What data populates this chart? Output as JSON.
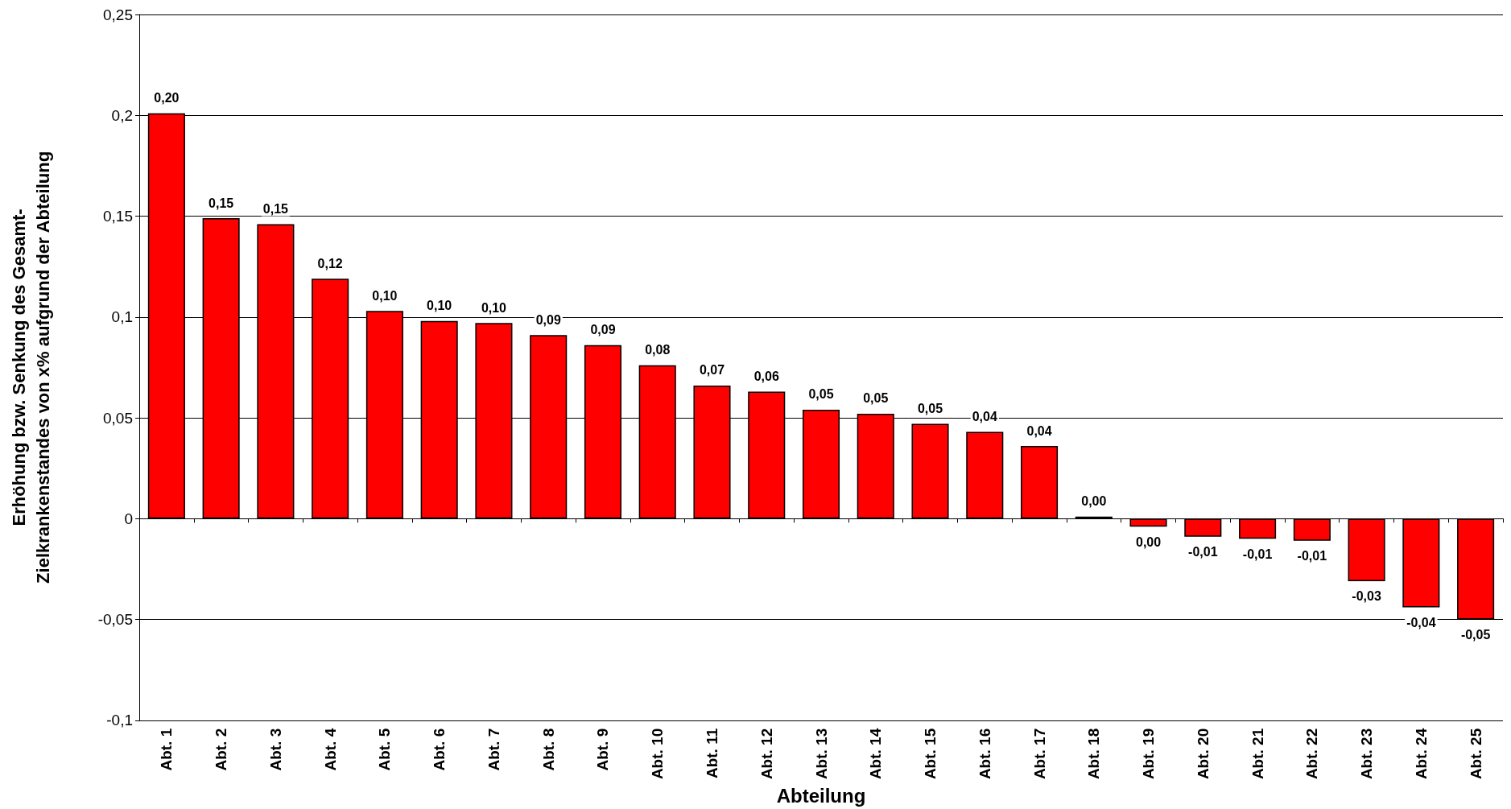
{
  "chart_data": {
    "type": "bar",
    "xlabel": "Abteilung",
    "ylabel": "Erhöhung bzw. Senkung des Gesamt-\nZielkrankenstandes von x% aufgrund der Abteilung",
    "categories": [
      "Abt. 1",
      "Abt. 2",
      "Abt. 3",
      "Abt. 4",
      "Abt. 5",
      "Abt. 6",
      "Abt. 7",
      "Abt. 8",
      "Abt. 9",
      "Abt. 10",
      "Abt. 11",
      "Abt. 12",
      "Abt. 13",
      "Abt. 14",
      "Abt. 15",
      "Abt. 16",
      "Abt. 17",
      "Abt. 18",
      "Abt. 19",
      "Abt. 20",
      "Abt. 21",
      "Abt. 22",
      "Abt. 23",
      "Abt. 24",
      "Abt. 25"
    ],
    "values": [
      0.201,
      0.149,
      0.146,
      0.119,
      0.103,
      0.098,
      0.097,
      0.091,
      0.086,
      0.076,
      0.066,
      0.063,
      0.054,
      0.052,
      0.047,
      0.043,
      0.036,
      0.001,
      -0.004,
      -0.009,
      -0.01,
      -0.011,
      -0.031,
      -0.044,
      -0.05
    ],
    "value_labels": [
      "0,20",
      "0,15",
      "0,15",
      "0,12",
      "0,10",
      "0,10",
      "0,10",
      "0,09",
      "0,09",
      "0,08",
      "0,07",
      "0,06",
      "0,05",
      "0,05",
      "0,05",
      "0,04",
      "0,04",
      "0,00",
      "0,00",
      "-0,01",
      "-0,01",
      "-0,01",
      "-0,03",
      "-0,04",
      "-0,05"
    ],
    "color": "#ff0000",
    "ylim": [
      -0.1,
      0.25
    ],
    "yticks": [
      {
        "value": -0.1,
        "label": "-0,1"
      },
      {
        "value": -0.05,
        "label": "-0,05"
      },
      0,
      {
        "value": 0.05,
        "label": "0,05"
      },
      {
        "value": 0.1,
        "label": "0,1"
      },
      {
        "value": 0.15,
        "label": "0,15"
      },
      {
        "value": 0.2,
        "label": "0,2"
      },
      {
        "value": 0.25,
        "label": "0,25"
      }
    ],
    "grid": "y"
  }
}
